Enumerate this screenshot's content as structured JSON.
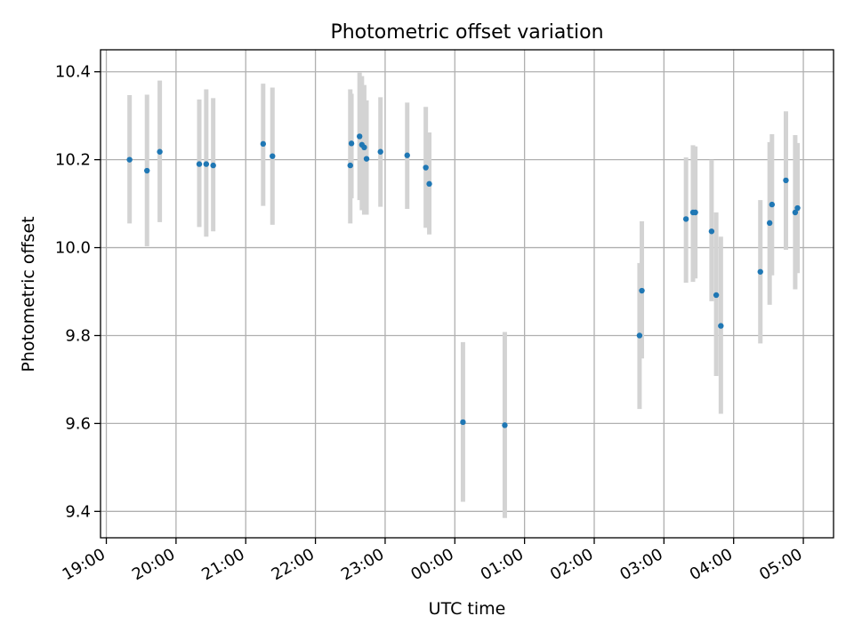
{
  "chart_data": {
    "type": "scatter",
    "title": "Photometric offset variation",
    "xlabel": "UTC time",
    "ylabel": "Photometric offset",
    "x_unit": "UTC time (hours after 19:00)",
    "xlim": [
      "18:55",
      "05:26"
    ],
    "ylim": [
      9.34,
      10.45
    ],
    "grid": true,
    "x_ticks": [
      "19:00",
      "20:00",
      "21:00",
      "22:00",
      "23:00",
      "00:00",
      "01:00",
      "02:00",
      "03:00",
      "04:00",
      "05:00"
    ],
    "y_ticks": [
      "9.4",
      "9.6",
      "9.8",
      "10.0",
      "10.2",
      "10.4"
    ],
    "marker_color": "#1f77b4",
    "errorbar_color": "#d3d3d3",
    "points": [
      {
        "x": "19:20",
        "y": 10.2,
        "ylo": 10.055,
        "yhi": 10.347
      },
      {
        "x": "19:35",
        "y": 10.175,
        "ylo": 10.003,
        "yhi": 10.348
      },
      {
        "x": "19:46",
        "y": 10.218,
        "ylo": 10.058,
        "yhi": 10.38
      },
      {
        "x": "20:20",
        "y": 10.19,
        "ylo": 10.047,
        "yhi": 10.337
      },
      {
        "x": "20:26",
        "y": 10.19,
        "ylo": 10.025,
        "yhi": 10.36
      },
      {
        "x": "20:32",
        "y": 10.187,
        "ylo": 10.037,
        "yhi": 10.34
      },
      {
        "x": "21:15",
        "y": 10.236,
        "ylo": 10.095,
        "yhi": 10.373
      },
      {
        "x": "21:23",
        "y": 10.208,
        "ylo": 10.052,
        "yhi": 10.364
      },
      {
        "x": "22:30",
        "y": 10.187,
        "ylo": 10.055,
        "yhi": 10.36
      },
      {
        "x": "22:31",
        "y": 10.237,
        "ylo": 10.112,
        "yhi": 10.35
      },
      {
        "x": "22:38",
        "y": 10.253,
        "ylo": 10.108,
        "yhi": 10.398
      },
      {
        "x": "22:40",
        "y": 10.234,
        "ylo": 10.085,
        "yhi": 10.39
      },
      {
        "x": "22:42",
        "y": 10.228,
        "ylo": 10.075,
        "yhi": 10.37
      },
      {
        "x": "22:44",
        "y": 10.202,
        "ylo": 10.075,
        "yhi": 10.335
      },
      {
        "x": "22:56",
        "y": 10.218,
        "ylo": 10.093,
        "yhi": 10.342
      },
      {
        "x": "23:19",
        "y": 10.21,
        "ylo": 10.088,
        "yhi": 10.33
      },
      {
        "x": "23:35",
        "y": 10.182,
        "ylo": 10.045,
        "yhi": 10.32
      },
      {
        "x": "23:38",
        "y": 10.145,
        "ylo": 10.03,
        "yhi": 10.262
      },
      {
        "x": "00:07",
        "y": 9.603,
        "ylo": 9.422,
        "yhi": 9.785
      },
      {
        "x": "00:43",
        "y": 9.596,
        "ylo": 9.385,
        "yhi": 9.808
      },
      {
        "x": "02:39",
        "y": 9.8,
        "ylo": 9.633,
        "yhi": 9.965
      },
      {
        "x": "02:41",
        "y": 9.902,
        "ylo": 9.748,
        "yhi": 10.06
      },
      {
        "x": "03:19",
        "y": 10.065,
        "ylo": 9.92,
        "yhi": 10.205
      },
      {
        "x": "03:25",
        "y": 10.08,
        "ylo": 9.922,
        "yhi": 10.233
      },
      {
        "x": "03:27",
        "y": 10.08,
        "ylo": 9.93,
        "yhi": 10.23
      },
      {
        "x": "03:41",
        "y": 10.037,
        "ylo": 9.878,
        "yhi": 10.2
      },
      {
        "x": "03:45",
        "y": 9.892,
        "ylo": 9.708,
        "yhi": 10.08
      },
      {
        "x": "03:49",
        "y": 9.822,
        "ylo": 9.622,
        "yhi": 10.025
      },
      {
        "x": "04:23",
        "y": 9.945,
        "ylo": 9.782,
        "yhi": 10.108
      },
      {
        "x": "04:31",
        "y": 10.056,
        "ylo": 9.87,
        "yhi": 10.24
      },
      {
        "x": "04:33",
        "y": 10.098,
        "ylo": 9.937,
        "yhi": 10.258
      },
      {
        "x": "04:45",
        "y": 10.153,
        "ylo": 9.995,
        "yhi": 10.31
      },
      {
        "x": "04:53",
        "y": 10.08,
        "ylo": 9.905,
        "yhi": 10.256
      },
      {
        "x": "04:55",
        "y": 10.09,
        "ylo": 9.942,
        "yhi": 10.238
      }
    ]
  }
}
